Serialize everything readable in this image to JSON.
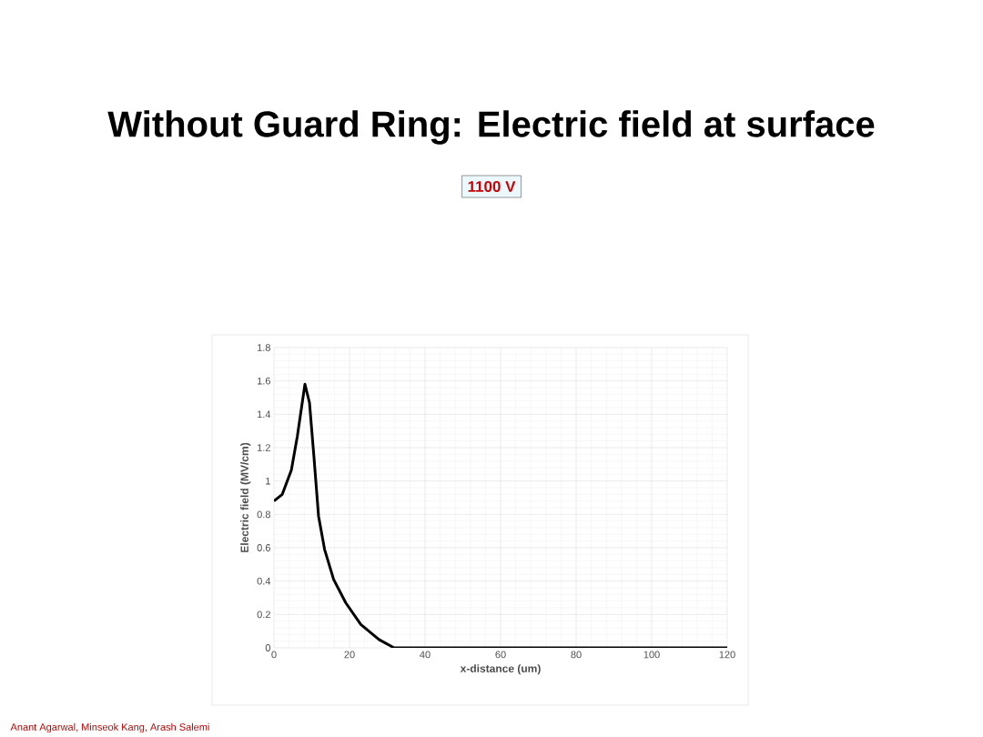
{
  "chart_data": {
    "type": "line",
    "title": "Without Guard Ring: Electric field at surface",
    "xlabel": "x-distance (um)",
    "ylabel": "Electric field (MV/cm)",
    "annotations": [
      "1100 V",
      "Anant Agarwal, Minseok Kang, Arash Salemi"
    ],
    "x": [
      0,
      2.2,
      4.6,
      6.2,
      8.2,
      9.4,
      10.6,
      11.8,
      13.4,
      15.8,
      19,
      23,
      27.8,
      31.8,
      40,
      60,
      80,
      100,
      120
    ],
    "series": [
      {
        "color": "#000000",
        "values": [
          0.88,
          0.92,
          1.065,
          1.27,
          1.58,
          1.47,
          1.14,
          0.79,
          0.59,
          0.41,
          0.27,
          0.14,
          0.05,
          0,
          0,
          0,
          0,
          0,
          0
        ]
      }
    ],
    "xlim": [
      0,
      120
    ],
    "ylim": [
      0,
      1.8
    ],
    "xticks": [
      0,
      20,
      40,
      60,
      80,
      100,
      120
    ],
    "yticks": [
      0,
      {
        "value": 0.2,
        "label": "0.2"
      },
      {
        "value": 0.4,
        "label": "0.4"
      },
      {
        "value": 0.6,
        "label": "0.6"
      },
      {
        "value": 0.8,
        "label": "0.8"
      },
      1,
      {
        "value": 1.2,
        "label": "1.2"
      },
      {
        "value": 1.4,
        "label": "1.4"
      },
      {
        "value": 1.6,
        "label": "1.6"
      },
      {
        "value": 1.8,
        "label": "1.8"
      }
    ],
    "grid": true,
    "marker": "none",
    "line_style": "solid"
  }
}
